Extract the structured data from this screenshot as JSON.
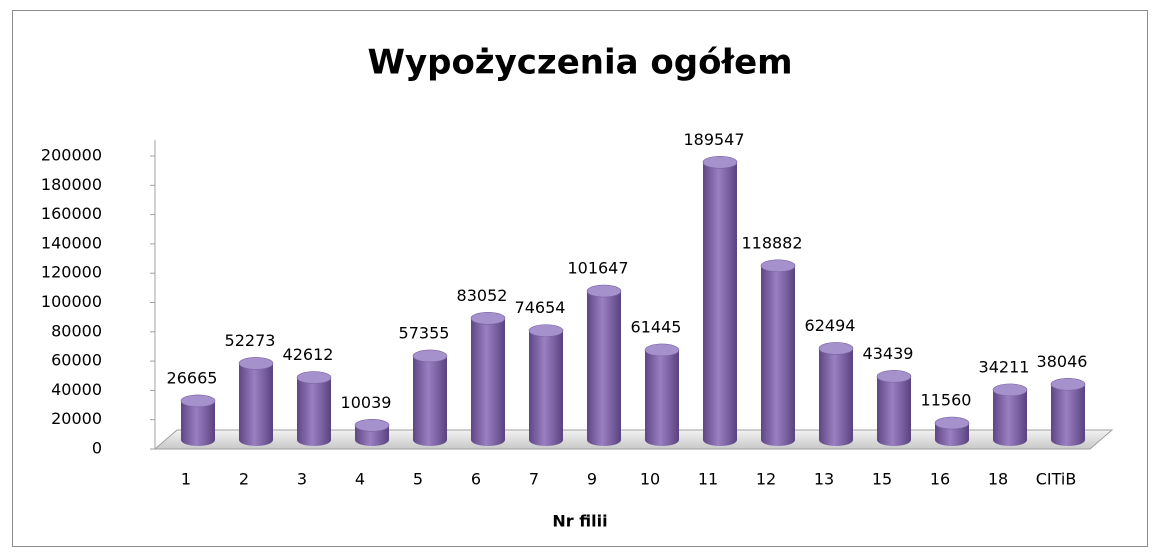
{
  "chart_data": {
    "type": "bar",
    "title": "Wypożyczenia ogółem",
    "x_label": "Nr filii",
    "categories": [
      "1",
      "2",
      "3",
      "4",
      "5",
      "6",
      "7",
      "9",
      "10",
      "11",
      "12",
      "13",
      "15",
      "16",
      "18",
      "CITiB"
    ],
    "values": [
      26665,
      52273,
      42612,
      10039,
      57355,
      83052,
      74654,
      101647,
      61445,
      189547,
      118882,
      62494,
      43439,
      11560,
      34211,
      38046
    ],
    "color": "#8064a2",
    "ylim": [
      0,
      200000
    ],
    "yticks": [
      0,
      20000,
      40000,
      60000,
      80000,
      100000,
      120000,
      140000,
      160000,
      180000,
      200000
    ],
    "grid": false
  }
}
